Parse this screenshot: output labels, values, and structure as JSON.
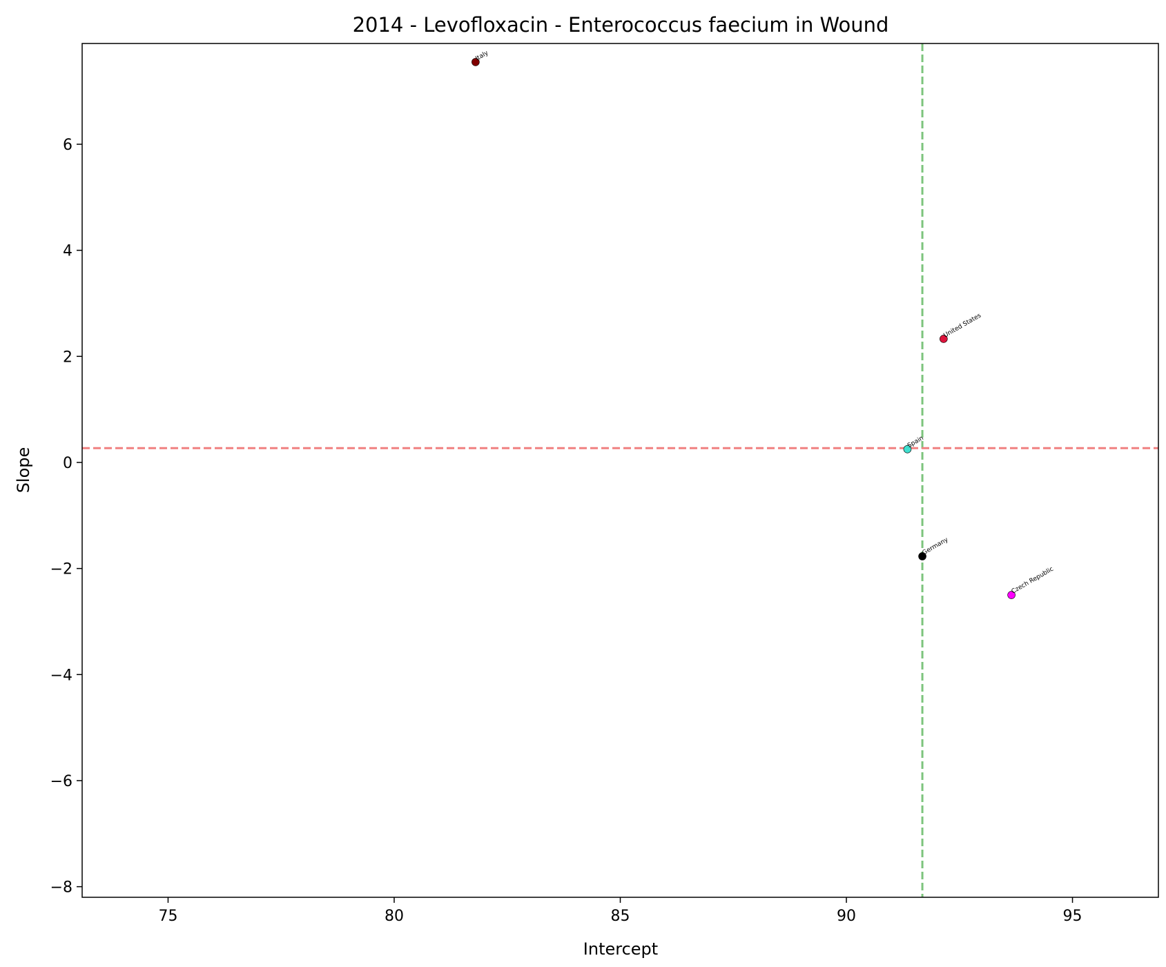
{
  "chart_data": {
    "type": "scatter",
    "title": "2014 - Levofloxacin - Enterococcus faecium in Wound",
    "xlabel": "Intercept",
    "ylabel": "Slope",
    "xlim": [
      73.1,
      96.9
    ],
    "ylim": [
      -8.2,
      7.9
    ],
    "xticks": [
      75,
      80,
      85,
      90,
      95
    ],
    "xtick_labels": [
      "75",
      "80",
      "85",
      "90",
      "95"
    ],
    "yticks": [
      6,
      4,
      2,
      0,
      -2,
      -4,
      -6,
      -8
    ],
    "ytick_labels": [
      "6",
      "4",
      "2",
      "0",
      "−2",
      "−4",
      "−6",
      "−8"
    ],
    "grid": false,
    "points": [
      {
        "label": "Italy",
        "x": 81.8,
        "y": 7.55,
        "color": "#800000"
      },
      {
        "label": "United States",
        "x": 92.15,
        "y": 2.33,
        "color": "#dc143c"
      },
      {
        "label": "Spain",
        "x": 91.35,
        "y": 0.25,
        "color": "#40e0d0"
      },
      {
        "label": "Germany",
        "x": 91.68,
        "y": -1.77,
        "color": "#000000"
      },
      {
        "label": "Czech Republic",
        "x": 93.65,
        "y": -2.5,
        "color": "#ff00ff"
      }
    ],
    "reference_lines": {
      "vertical": {
        "x": 91.68,
        "color": "#7cc47c",
        "style": "dashed"
      },
      "horizontal": {
        "y": 0.27,
        "color": "#f08080",
        "style": "dashed"
      }
    }
  }
}
